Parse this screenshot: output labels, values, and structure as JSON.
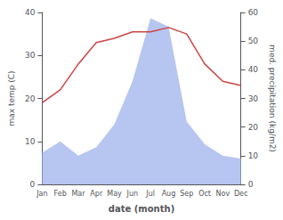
{
  "chart_data": {
    "type": "line",
    "categories": [
      "Jan",
      "Feb",
      "Mar",
      "Apr",
      "May",
      "Jun",
      "Jul",
      "Aug",
      "Sep",
      "Oct",
      "Nov",
      "Dec"
    ],
    "xlabel": "date (month)",
    "ylabel": "max temp (C)",
    "y2label": "med. precipitation (kg/m2)",
    "ylim": [
      0,
      40
    ],
    "yticks": [
      0,
      10,
      20,
      30,
      40
    ],
    "y2lim": [
      0,
      60
    ],
    "y2ticks": [
      0,
      10,
      20,
      30,
      40,
      50,
      60
    ],
    "grid": false,
    "series": [
      {
        "type": "area",
        "axis": "y2",
        "color": "#aabbee",
        "values": [
          11,
          15,
          10,
          13,
          21,
          36,
          58,
          55,
          22,
          14,
          10,
          9
        ]
      },
      {
        "type": "line",
        "axis": "y",
        "color": "#cc4444",
        "values": [
          19,
          22,
          28,
          33,
          34,
          35.5,
          35.5,
          36.5,
          35,
          28,
          24,
          23
        ]
      }
    ]
  }
}
